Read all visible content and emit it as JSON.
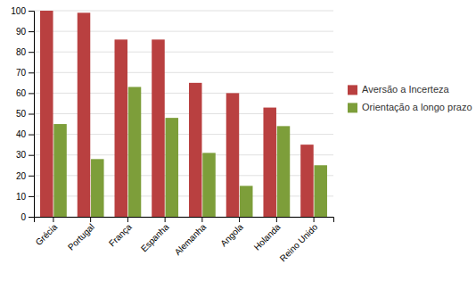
{
  "chart_data": {
    "type": "bar",
    "categories": [
      "Grécia",
      "Portugal",
      "França",
      "Espanha",
      "Alemanha",
      "Angola",
      "Holanda",
      "Reino Unido"
    ],
    "series": [
      {
        "name": "Aversão a Incerteza",
        "color": "#b94040",
        "values": [
          100,
          99,
          86,
          86,
          65,
          60,
          53,
          35
        ]
      },
      {
        "name": "Orientação a longo prazo",
        "color": "#7d9e3a",
        "values": [
          45,
          28,
          63,
          48,
          31,
          15,
          44,
          25
        ]
      }
    ],
    "ylim": [
      0,
      100
    ],
    "yticks": [
      0,
      10,
      20,
      30,
      40,
      50,
      60,
      70,
      80,
      90,
      100
    ],
    "grid": true,
    "legend": "right"
  }
}
